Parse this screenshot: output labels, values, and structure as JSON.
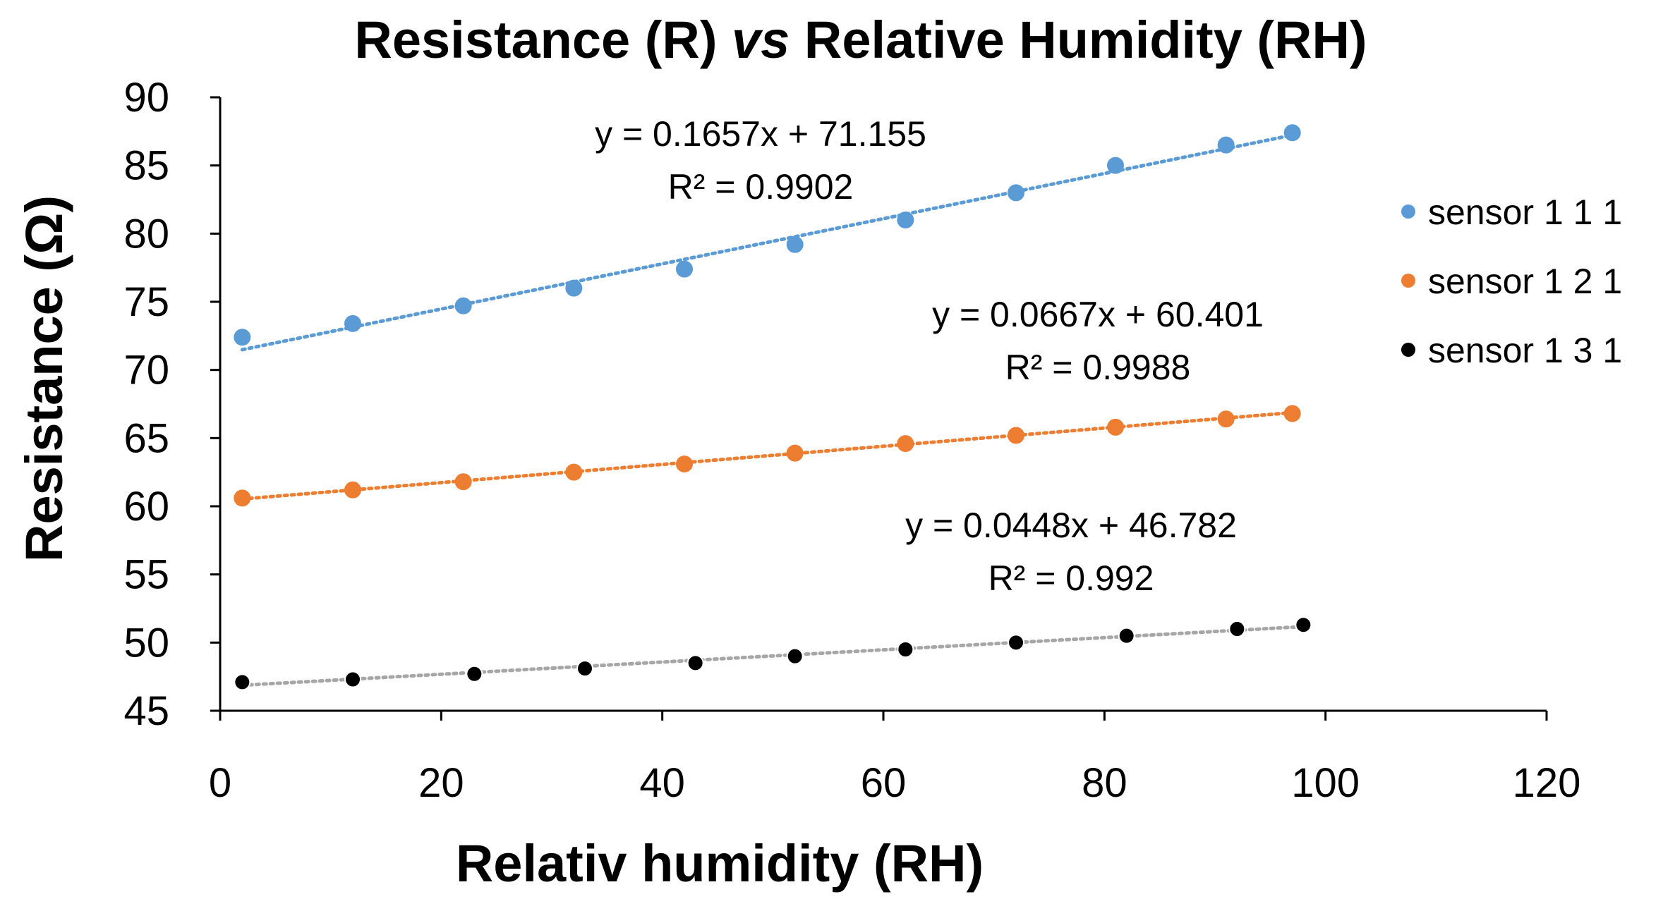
{
  "chart_data": {
    "type": "scatter",
    "title": {
      "part1": "Resistance (R) ",
      "part2": "vs",
      "part3": " Relative Humidity (RH)"
    },
    "xlabel": "Relativ humidity (RH)",
    "ylabel": "Resistance (Ω)",
    "xlim": [
      0,
      120
    ],
    "ylim": [
      45,
      90
    ],
    "xticks": [
      0,
      20,
      40,
      60,
      80,
      100,
      120
    ],
    "yticks": [
      45,
      50,
      55,
      60,
      65,
      70,
      75,
      80,
      85,
      90
    ],
    "legend_position": "right",
    "series": [
      {
        "name": "sensor 1 1 1",
        "color": "#5B9BD5",
        "marker_stroke": "#5B9BD5",
        "trend_color": "#5B9BD5",
        "x": [
          2,
          12,
          22,
          32,
          42,
          52,
          62,
          72,
          81,
          91,
          97
        ],
        "y": [
          72.4,
          73.4,
          74.7,
          76.0,
          77.4,
          79.2,
          81.0,
          83.0,
          85.0,
          86.5,
          87.4
        ],
        "trendline": {
          "slope": 0.1657,
          "intercept": 71.155,
          "x_range": [
            2,
            97
          ]
        },
        "equation": "y = 0.1657x + 71.155",
        "r2": "R² = 0.9902"
      },
      {
        "name": "sensor 1 2 1",
        "color": "#ED7D31",
        "marker_stroke": "#ED7D31",
        "trend_color": "#ED7D31",
        "x": [
          2,
          12,
          22,
          32,
          42,
          52,
          62,
          72,
          81,
          91,
          97
        ],
        "y": [
          60.6,
          61.2,
          61.8,
          62.5,
          63.1,
          63.9,
          64.6,
          65.2,
          65.8,
          66.4,
          66.8
        ],
        "trendline": {
          "slope": 0.0667,
          "intercept": 60.401,
          "x_range": [
            2,
            97
          ]
        },
        "equation": "y = 0.0667x + 60.401",
        "r2": "R² = 0.9988"
      },
      {
        "name": "sensor 1 3 1",
        "color": "#000000",
        "marker_stroke": "#ffffff",
        "trend_color": "#A6A6A6",
        "x": [
          2,
          12,
          23,
          33,
          43,
          52,
          62,
          72,
          82,
          92,
          98
        ],
        "y": [
          47.1,
          47.3,
          47.7,
          48.1,
          48.5,
          49.0,
          49.5,
          50.0,
          50.5,
          51.0,
          51.3
        ],
        "trendline": {
          "slope": 0.0448,
          "intercept": 46.782,
          "x_range": [
            2,
            98
          ]
        },
        "equation": "y = 0.0448x + 46.782",
        "r2": "R² = 0.992"
      }
    ]
  }
}
